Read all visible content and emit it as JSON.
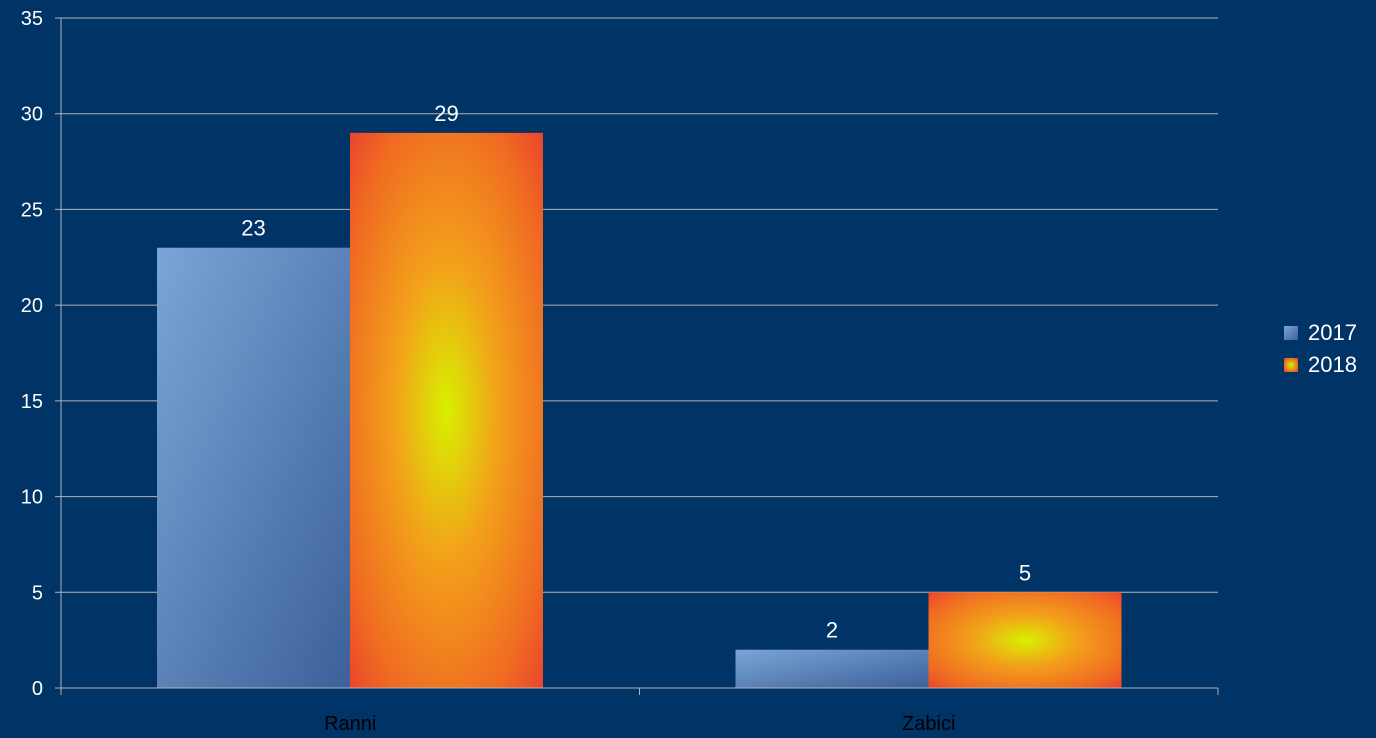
{
  "colors": {
    "background": "#003366",
    "grid": "#b3b3b3",
    "text": "#ffffff",
    "series_2017": "#5a86bd",
    "series_2018": "#f4801f"
  },
  "chart_data": {
    "type": "bar",
    "title": "",
    "xlabel": "",
    "ylabel": "",
    "categories": [
      "Ranni",
      "Zabici"
    ],
    "series": [
      {
        "name": "2017",
        "values": [
          23,
          2
        ]
      },
      {
        "name": "2018",
        "values": [
          29,
          5
        ]
      }
    ],
    "ylim": [
      0,
      35
    ],
    "yticks": [
      0,
      5,
      10,
      15,
      20,
      25,
      30,
      35
    ],
    "grid": true,
    "data_labels": true,
    "legend_position": "right"
  }
}
